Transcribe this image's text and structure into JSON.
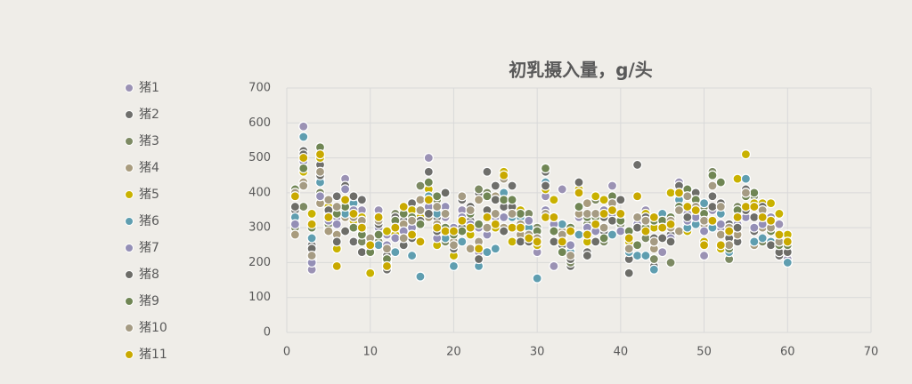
{
  "chart_data": {
    "type": "scatter",
    "title": "初乳摄入量，g/头",
    "x": [
      1,
      2,
      3,
      4,
      5,
      6,
      7,
      8,
      9,
      10,
      11,
      12,
      13,
      14,
      15,
      16,
      17,
      18,
      19,
      20,
      21,
      22,
      23,
      24,
      25,
      26,
      27,
      28,
      29,
      30,
      31,
      32,
      33,
      34,
      35,
      36,
      37,
      38,
      39,
      40,
      41,
      42,
      43,
      44,
      45,
      46,
      47,
      48,
      49,
      50,
      51,
      52,
      53,
      54,
      55,
      56,
      57,
      58,
      59,
      60
    ],
    "xlim": [
      0,
      70
    ],
    "xticks": [
      0,
      10,
      20,
      30,
      40,
      50,
      60,
      70
    ],
    "ylim": [
      0,
      700
    ],
    "yticks": [
      0,
      100,
      200,
      300,
      400,
      500,
      600,
      700
    ],
    "grid": true,
    "legend": "left",
    "series": [
      {
        "name": "猪1",
        "color": "#9b92b4",
        "values": [
          320,
          590,
          180,
          440,
          300,
          330,
          440,
          300,
          350,
          250,
          350,
          280,
          290,
          300,
          340,
          260,
          500,
          300,
          330,
          250,
          350,
          300,
          230,
          290,
          320,
          290,
          330,
          350,
          300,
          230,
          390,
          190,
          410,
          220,
          330,
          320,
          260,
          270,
          420,
          300,
          250,
          300,
          350,
          270,
          230,
          300,
          430,
          340,
          380,
          220,
          350,
          300,
          270,
          330,
          340,
          290,
          330,
          300,
          310,
          210
        ]
      },
      {
        "name": "猪2",
        "color": "#6f6f6c",
        "values": [
          350,
          520,
          250,
          480,
          370,
          390,
          420,
          260,
          380,
          230,
          260,
          180,
          300,
          320,
          370,
          350,
          460,
          330,
          400,
          280,
          380,
          320,
          400,
          460,
          420,
          360,
          420,
          340,
          320,
          270,
          460,
          330,
          250,
          190,
          430,
          230,
          390,
          290,
          340,
          380,
          210,
          480,
          290,
          190,
          330,
          280,
          420,
          310,
          400,
          310,
          390,
          370,
          310,
          260,
          410,
          290,
          320,
          260,
          220,
          200
        ]
      },
      {
        "name": "猪3",
        "color": "#7d8a63",
        "values": [
          300,
          360,
          270,
          400,
          310,
          240,
          350,
          340,
          260,
          230,
          260,
          200,
          340,
          280,
          330,
          420,
          390,
          380,
          260,
          270,
          300,
          360,
          410,
          400,
          330,
          290,
          370,
          310,
          340,
          300,
          470,
          290,
          300,
          200,
          360,
          310,
          380,
          260,
          350,
          310,
          290,
          300,
          270,
          210,
          300,
          200,
          360,
          410,
          370,
          360,
          460,
          430,
          210,
          360,
          350,
          390,
          260,
          290,
          250,
          240
        ]
      },
      {
        "name": "猪4",
        "color": "#a99c7e",
        "values": [
          280,
          430,
          210,
          370,
          290,
          280,
          330,
          310,
          290,
          240,
          280,
          190,
          270,
          310,
          290,
          380,
          330,
          310,
          290,
          260,
          320,
          240,
          380,
          300,
          390,
          300,
          330,
          280,
          310,
          290,
          330,
          320,
          290,
          240,
          340,
          370,
          310,
          300,
          360,
          320,
          260,
          310,
          300,
          240,
          330,
          300,
          290,
          330,
          320,
          310,
          300,
          280,
          300,
          280,
          400,
          250,
          300,
          320,
          240,
          280
        ]
      },
      {
        "name": "猪5",
        "color": "#c9b200",
        "values": [
          390,
          460,
          340,
          500,
          360,
          240,
          370,
          320,
          330,
          170,
          330,
          290,
          280,
          350,
          350,
          330,
          410,
          250,
          270,
          220,
          330,
          280,
          250,
          330,
          300,
          460,
          260,
          350,
          270,
          250,
          410,
          380,
          310,
          290,
          410,
          260,
          390,
          380,
          350,
          330,
          260,
          390,
          340,
          300,
          330,
          400,
          390,
          290,
          370,
          260,
          310,
          240,
          260,
          440,
          510,
          370,
          370,
          370,
          340,
          280
        ]
      },
      {
        "name": "猪6",
        "color": "#5f9eb0",
        "values": [
          330,
          560,
          270,
          430,
          340,
          340,
          340,
          370,
          300,
          250,
          250,
          200,
          230,
          250,
          220,
          160,
          390,
          340,
          270,
          190,
          260,
          300,
          190,
          230,
          240,
          400,
          330,
          330,
          300,
          155,
          430,
          300,
          310,
          230,
          280,
          290,
          320,
          330,
          280,
          320,
          230,
          220,
          220,
          180,
          340,
          310,
          380,
          300,
          310,
          370,
          300,
          340,
          230,
          350,
          440,
          260,
          270,
          260,
          260,
          200
        ]
      },
      {
        "name": "猪7",
        "color": "#948fb6",
        "values": [
          310,
          490,
          200,
          390,
          320,
          310,
          410,
          350,
          320,
          260,
          300,
          250,
          270,
          290,
          300,
          310,
          360,
          270,
          360,
          300,
          330,
          310,
          300,
          280,
          330,
          330,
          370,
          300,
          320,
          280,
          350,
          310,
          270,
          250,
          360,
          300,
          290,
          350,
          340,
          290,
          240,
          310,
          300,
          260,
          300,
          270,
          350,
          320,
          330,
          290,
          320,
          310,
          280,
          310,
          330,
          300,
          310,
          330,
          270,
          230
        ]
      },
      {
        "name": "猪8",
        "color": "#6d6d68",
        "values": [
          360,
          510,
          240,
          450,
          350,
          260,
          290,
          390,
          230,
          230,
          310,
          220,
          330,
          250,
          270,
          320,
          340,
          290,
          400,
          240,
          300,
          360,
          210,
          350,
          380,
          290,
          360,
          260,
          260,
          260,
          420,
          260,
          270,
          210,
          430,
          220,
          260,
          330,
          320,
          380,
          170,
          300,
          330,
          270,
          270,
          260,
          400,
          330,
          400,
          330,
          360,
          370,
          270,
          300,
          350,
          330,
          360,
          250,
          230,
          230
        ]
      },
      {
        "name": "猪9",
        "color": "#708654",
        "values": [
          410,
          470,
          300,
          530,
          330,
          340,
          360,
          300,
          280,
          230,
          280,
          210,
          320,
          340,
          330,
          310,
          430,
          390,
          300,
          280,
          290,
          340,
          310,
          390,
          340,
          380,
          380,
          340,
          270,
          290,
          470,
          290,
          230,
          300,
          360,
          330,
          330,
          270,
          390,
          320,
          290,
          250,
          300,
          320,
          320,
          330,
          360,
          410,
          380,
          340,
          450,
          430,
          240,
          350,
          390,
          400,
          330,
          290,
          250,
          250
        ]
      },
      {
        "name": "猪10",
        "color": "#a59b83",
        "values": [
          400,
          420,
          220,
          460,
          380,
          360,
          380,
          330,
          320,
          270,
          320,
          240,
          300,
          270,
          320,
          350,
          380,
          360,
          340,
          250,
          390,
          350,
          260,
          300,
          340,
          440,
          340,
          310,
          280,
          270,
          340,
          330,
          280,
          220,
          400,
          340,
          340,
          300,
          370,
          340,
          240,
          330,
          320,
          260,
          300,
          320,
          350,
          390,
          360,
          320,
          420,
          360,
          250,
          330,
          400,
          360,
          350,
          300,
          260,
          260
        ]
      },
      {
        "name": "猪11",
        "color": "#c9a900",
        "values": [
          390,
          500,
          310,
          510,
          330,
          190,
          380,
          340,
          300,
          250,
          330,
          190,
          300,
          360,
          280,
          260,
          380,
          300,
          290,
          290,
          320,
          300,
          240,
          330,
          310,
          450,
          300,
          300,
          270,
          260,
          330,
          330,
          260,
          290,
          400,
          280,
          310,
          340,
          350,
          340,
          270,
          390,
          290,
          330,
          300,
          310,
          400,
          360,
          350,
          250,
          320,
          250,
          290,
          330,
          360,
          360,
          330,
          320,
          280,
          260
        ]
      }
    ]
  }
}
